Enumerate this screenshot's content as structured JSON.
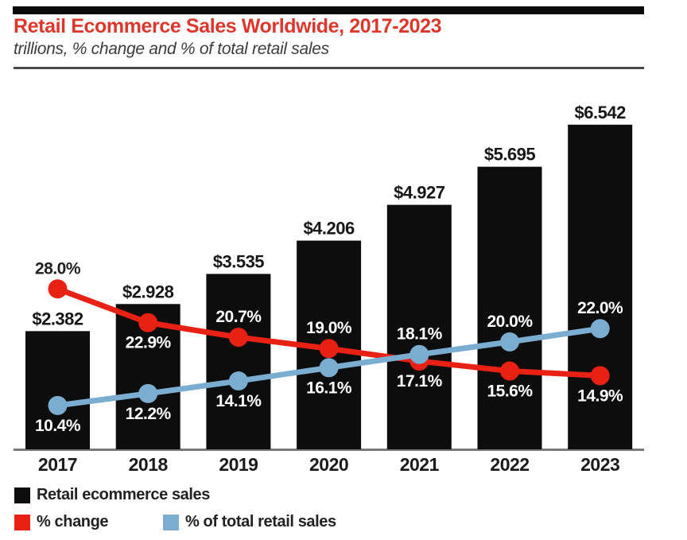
{
  "header": {
    "title": "Retail Ecommerce Sales Worldwide, 2017-2023",
    "subtitle": "trillions, % change and % of total retail sales"
  },
  "chart_data": {
    "type": "bar",
    "subtype": "bar-with-two-line-overlays",
    "title": "Retail Ecommerce Sales Worldwide, 2017-2023",
    "subtitle": "trillions, % change and % of total retail sales",
    "categories": [
      "2017",
      "2018",
      "2019",
      "2020",
      "2021",
      "2022",
      "2023"
    ],
    "bar_series": {
      "name": "Retail ecommerce sales",
      "unit": "trillions of US dollars",
      "values": [
        2.382,
        2.928,
        3.535,
        4.206,
        4.927,
        5.695,
        6.542
      ],
      "labels": [
        "$2.382",
        "$2.928",
        "$3.535",
        "$4.206",
        "$4.927",
        "$5.695",
        "$6.542"
      ],
      "color": "#0d0d0d"
    },
    "line_series": [
      {
        "name": "% change",
        "values": [
          28.0,
          22.9,
          20.7,
          19.0,
          17.1,
          15.6,
          14.9
        ],
        "labels": [
          "28.0%",
          "22.9%",
          "20.7%",
          "19.0%",
          "17.1%",
          "15.6%",
          "14.9%"
        ],
        "color": "#e92115",
        "label_sides": [
          "above",
          "below",
          "above",
          "above",
          "below",
          "below",
          "below"
        ]
      },
      {
        "name": "% of total retail sales",
        "values": [
          10.4,
          12.2,
          14.1,
          16.1,
          18.1,
          20.0,
          22.0
        ],
        "labels": [
          "10.4%",
          "12.2%",
          "14.1%",
          "16.1%",
          "18.1%",
          "20.0%",
          "22.0%"
        ],
        "color": "#7aadd0",
        "label_sides": [
          "below",
          "below",
          "below",
          "below",
          "above",
          "above",
          "above"
        ]
      }
    ],
    "axes": {
      "x_axis_line": true,
      "y_axis_visible": false,
      "bar_value_range": [
        0,
        6.542
      ],
      "pct_value_range": [
        10.4,
        28.0
      ],
      "grid": false
    },
    "legend_position": "bottom-left"
  },
  "legend": {
    "items": [
      {
        "label": "Retail ecommerce sales",
        "color": "#0d0d0d"
      },
      {
        "label": "% change",
        "color": "#e92115"
      },
      {
        "label": "% of total retail sales",
        "color": "#7aadd0"
      }
    ]
  }
}
